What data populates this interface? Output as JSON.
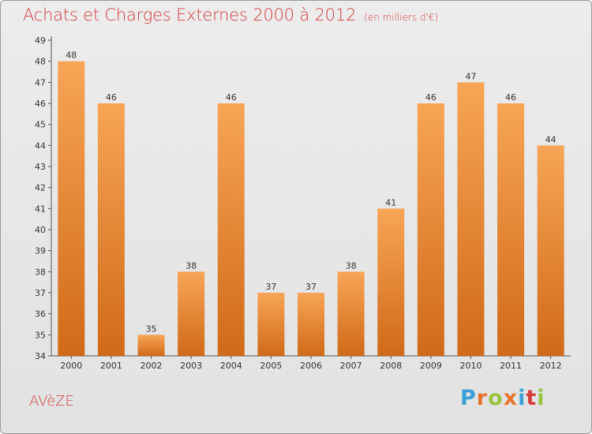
{
  "header": {
    "title": "Achats et Charges Externes 2000 à 2012",
    "unit_note": "(en milliers d'€)"
  },
  "footer": {
    "commune": "AVèZE",
    "logo_text": "Proxiti",
    "logo_colors": [
      "#3aa0d8",
      "#e8732c",
      "#9ac43c",
      "#e8732c",
      "#3aa0d8",
      "#d43c3c",
      "#9ac43c"
    ]
  },
  "chart_data": {
    "type": "bar",
    "categories": [
      "2000",
      "2001",
      "2002",
      "2003",
      "2004",
      "2005",
      "2006",
      "2007",
      "2008",
      "2009",
      "2010",
      "2011",
      "2012"
    ],
    "values": [
      48,
      46,
      35,
      38,
      46,
      37,
      37,
      38,
      41,
      46,
      47,
      46,
      44
    ],
    "ylim": [
      34,
      49
    ],
    "yticks": [
      34,
      35,
      36,
      37,
      38,
      39,
      40,
      41,
      42,
      43,
      44,
      45,
      46,
      47,
      48,
      49
    ],
    "data_labels": true,
    "grid": false,
    "bar_color_top": "#f7a556",
    "bar_color_bottom": "#d06a18",
    "title_color": "#d43c3c"
  }
}
